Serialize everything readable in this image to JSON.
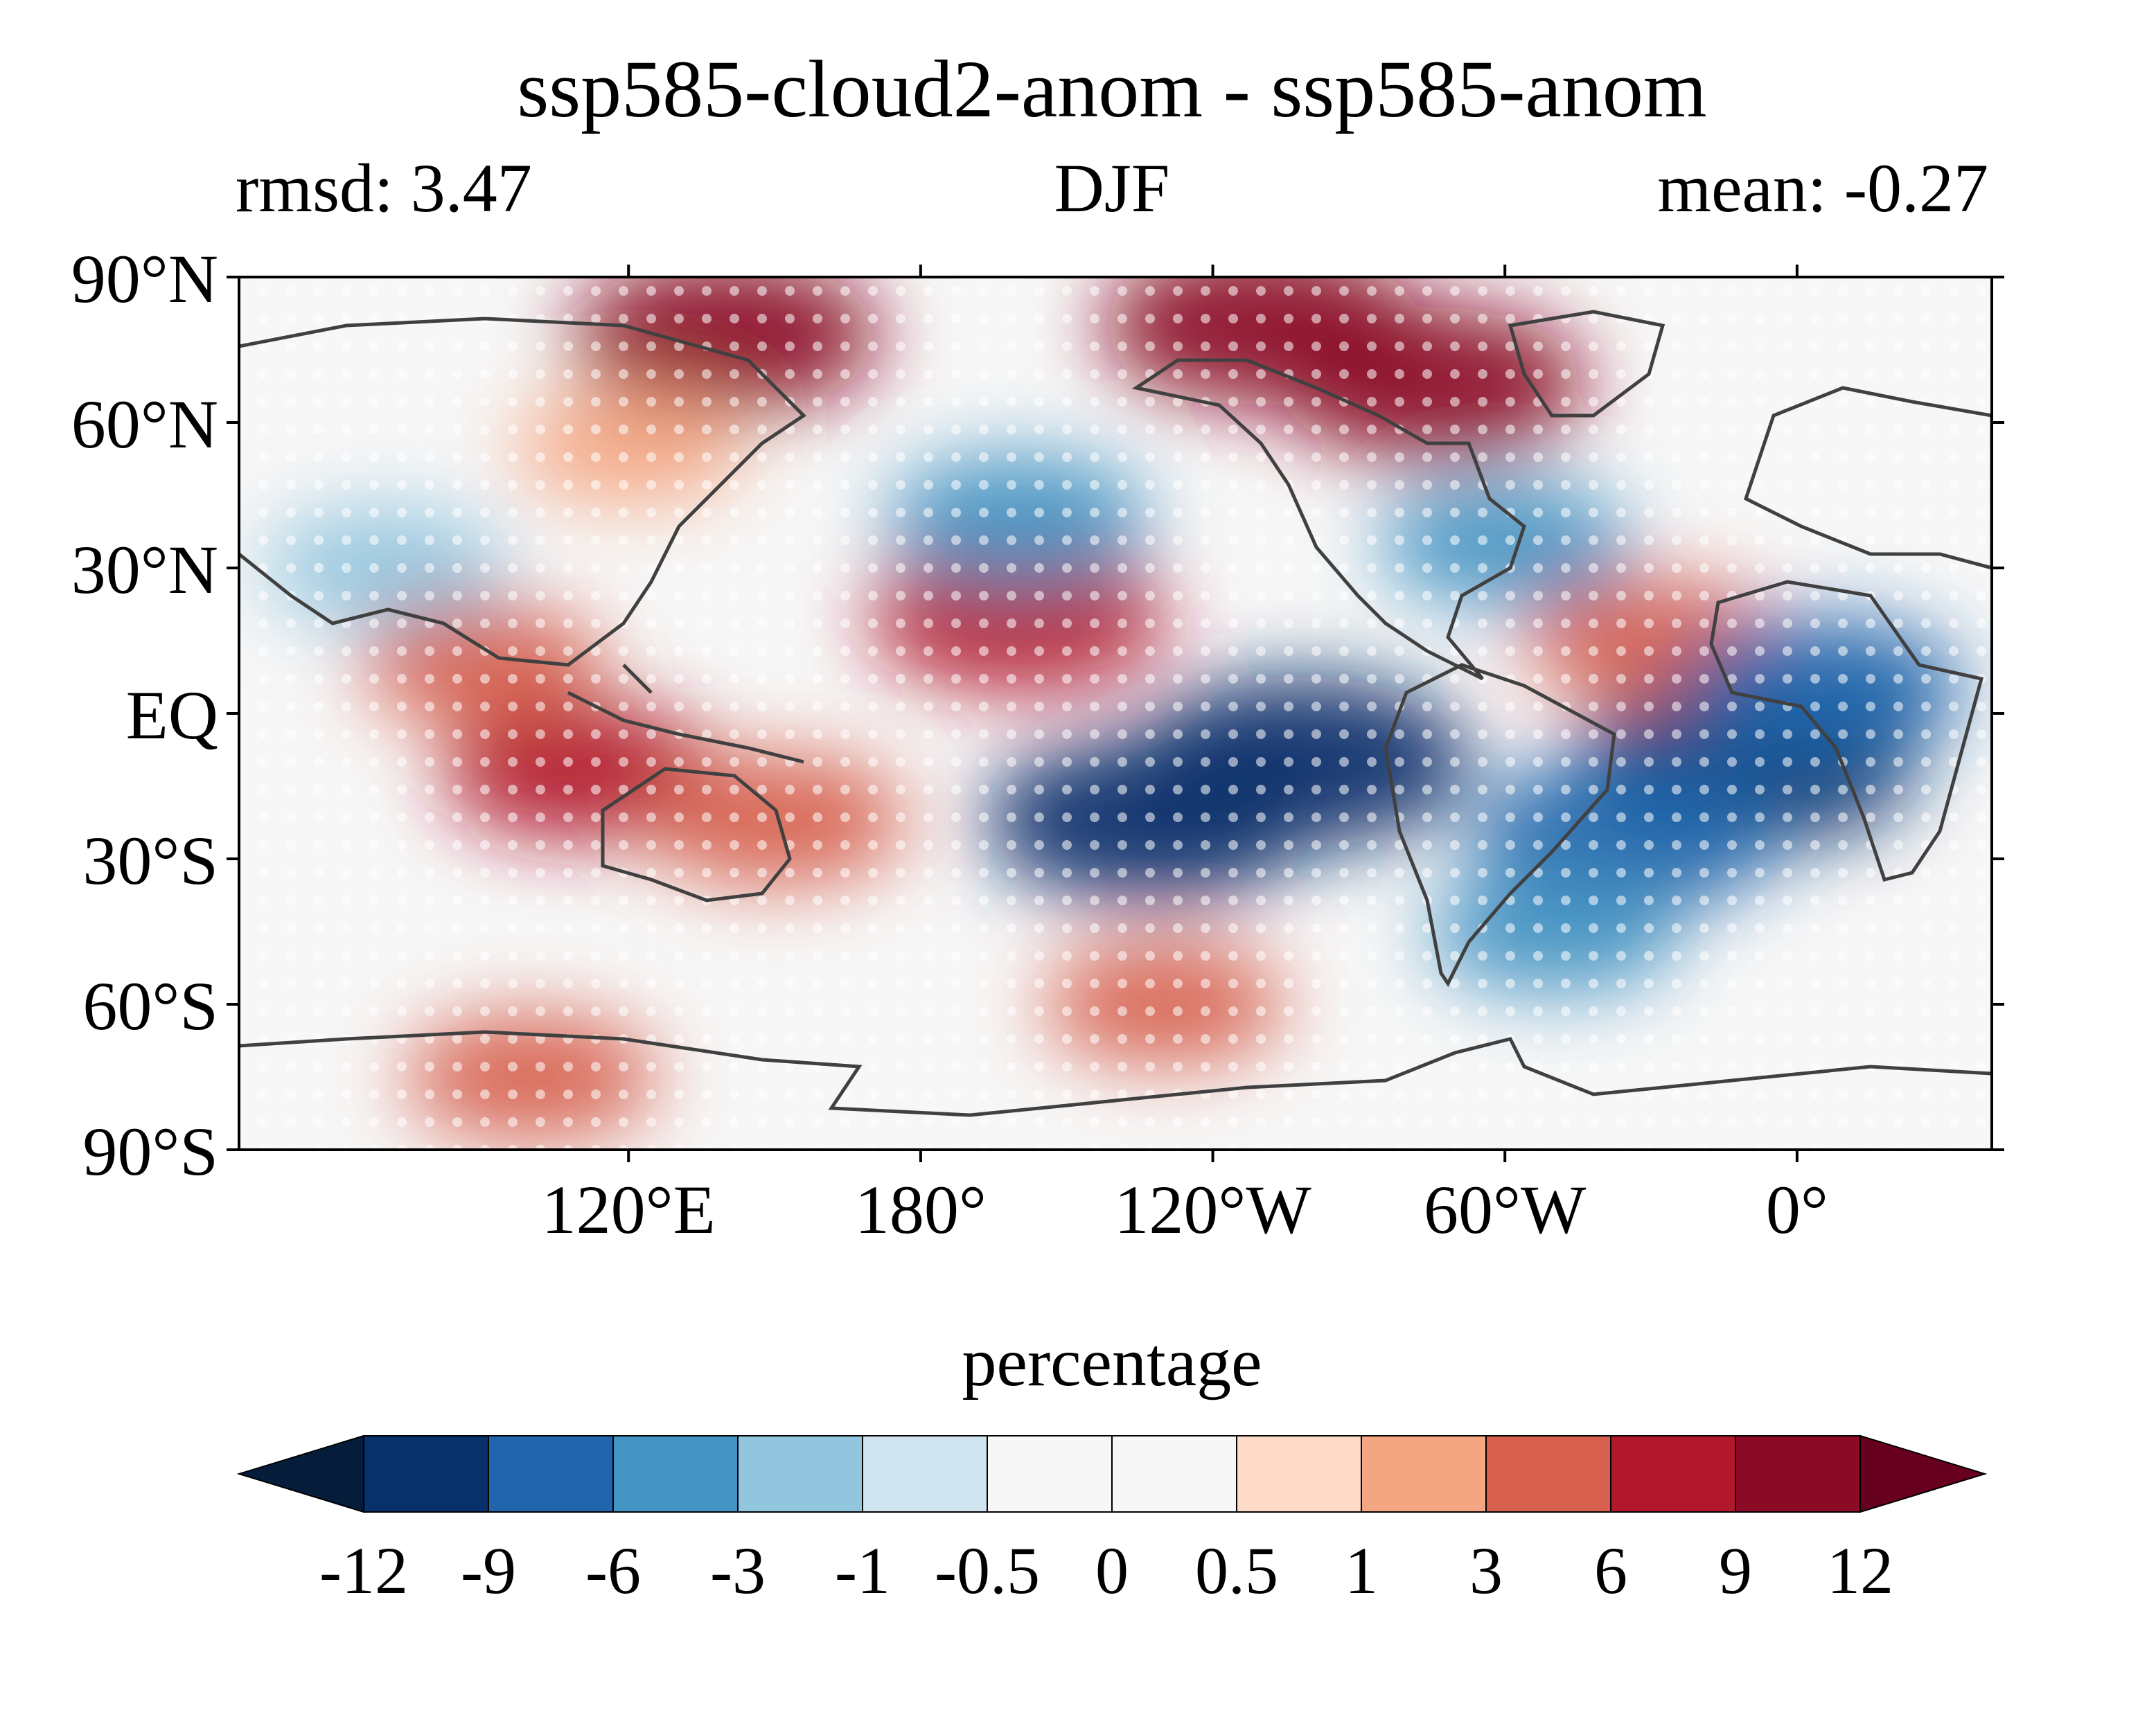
{
  "chart_data": {
    "type": "heatmap",
    "title": "ssp585-cloud2-anom - ssp585-anom",
    "left_subtitle": "rmsd: 3.47",
    "center_subtitle": "DJF",
    "right_subtitle": "mean: -0.27",
    "y_ticks": [
      "90°N",
      "60°N",
      "30°N",
      "EQ",
      "30°S",
      "60°S",
      "90°S"
    ],
    "y_tick_values": [
      90,
      60,
      30,
      0,
      -30,
      -60,
      -90
    ],
    "x_ticks": [
      "120°E",
      "180°",
      "120°W",
      "60°W",
      "0°"
    ],
    "x_tick_values": [
      120,
      180,
      240,
      300,
      360
    ],
    "x_range": [
      40,
      400
    ],
    "y_range": [
      -90,
      90
    ],
    "stippling": true,
    "colorbar": {
      "label": "percentage",
      "levels": [
        "-12",
        "-9",
        "-6",
        "-3",
        "-1",
        "-0.5",
        "0",
        "0.5",
        "1",
        "3",
        "6",
        "9",
        "12"
      ],
      "colors": [
        "#08306b",
        "#2166ac",
        "#4393c3",
        "#92c5de",
        "#d1e5f0",
        "#f7f7f7",
        "#f7f7f7",
        "#fddbc7",
        "#f4a582",
        "#d6604d",
        "#b2182b",
        "#8b0a26"
      ],
      "under_color": "#051c3a",
      "over_color": "#67001f",
      "extend": "both"
    },
    "anomaly_regions": [
      {
        "lon": 200,
        "lat": 20,
        "value": 8
      },
      {
        "lon": 140,
        "lat": 78,
        "value": 9
      },
      {
        "lon": 250,
        "lat": 80,
        "value": 10
      },
      {
        "lon": 285,
        "lat": 68,
        "value": 9
      },
      {
        "lon": 258,
        "lat": -10,
        "value": -12
      },
      {
        "lon": 350,
        "lat": -10,
        "value": -12
      },
      {
        "lon": 227,
        "lat": -22,
        "value": -11
      },
      {
        "lon": 325,
        "lat": -25,
        "value": -9
      },
      {
        "lon": 200,
        "lat": 40,
        "value": -5
      },
      {
        "lon": 300,
        "lat": 35,
        "value": -4
      },
      {
        "lon": 110,
        "lat": -12,
        "value": 6
      },
      {
        "lon": 150,
        "lat": -22,
        "value": 5
      },
      {
        "lon": 230,
        "lat": -60,
        "value": 3
      },
      {
        "lon": 100,
        "lat": -75,
        "value": 4
      },
      {
        "lon": 330,
        "lat": 15,
        "value": 4
      },
      {
        "lon": 365,
        "lat": 5,
        "value": -7
      },
      {
        "lon": 310,
        "lat": -45,
        "value": -4
      },
      {
        "lon": 120,
        "lat": 55,
        "value": 2
      },
      {
        "lon": 70,
        "lat": 30,
        "value": -3
      },
      {
        "lon": 90,
        "lat": 10,
        "value": 3
      }
    ]
  }
}
